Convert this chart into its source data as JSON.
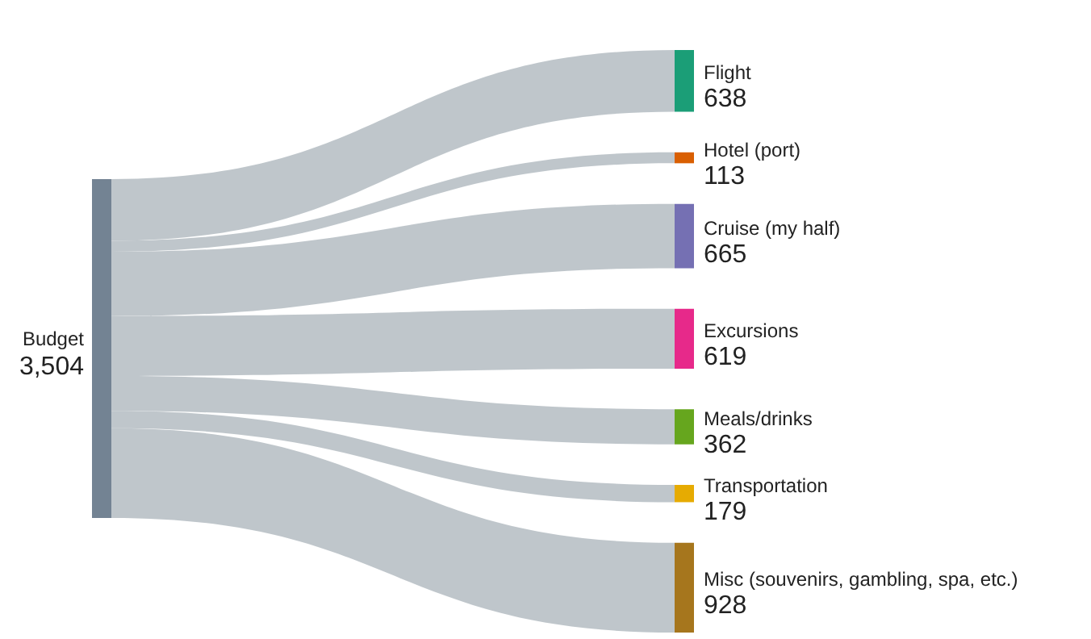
{
  "chart_data": {
    "type": "other",
    "categories": [
      "Budget",
      "Flight",
      "Hotel (port)",
      "Cruise (my half)",
      "Excursions",
      "Meals/drinks",
      "Transportation",
      "Misc (souvenirs, gambling, spa, etc.)"
    ],
    "values": [
      3504,
      638,
      113,
      665,
      619,
      362,
      179,
      928
    ],
    "value_labels": [
      "3,504",
      "638",
      "113",
      "665",
      "619",
      "362",
      "179",
      "928"
    ],
    "colors": [
      "#738393",
      "#1b9e77",
      "#d95f02",
      "#7570b3",
      "#e7298a",
      "#66a61e",
      "#e6ab02",
      "#a6761d"
    ]
  }
}
